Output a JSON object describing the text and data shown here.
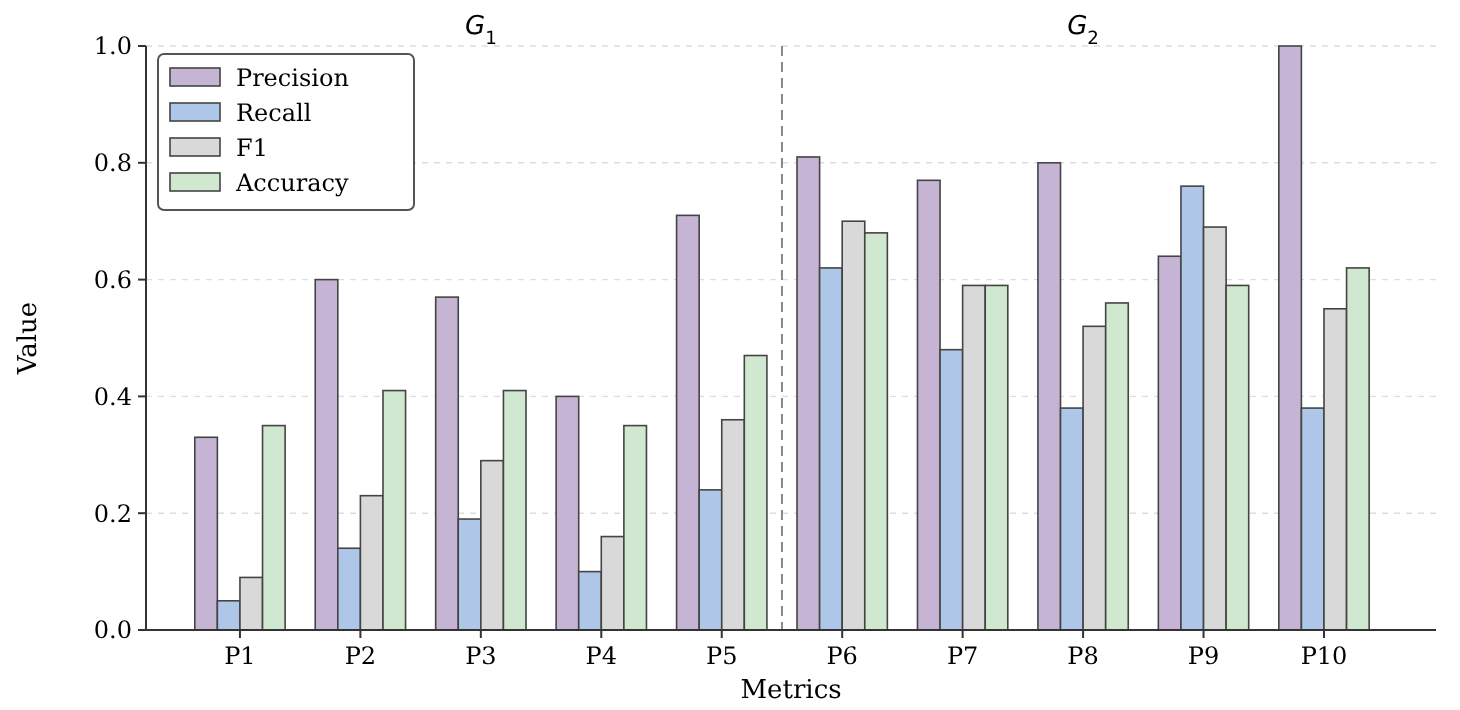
{
  "chart_data": {
    "type": "bar",
    "xlabel": "Metrics",
    "ylabel": "Value",
    "categories": [
      "P1",
      "P2",
      "P3",
      "P4",
      "P5",
      "P6",
      "P7",
      "P8",
      "P9",
      "P10"
    ],
    "series": [
      {
        "name": "Precision",
        "color": "#c6b4d4",
        "values": [
          0.33,
          0.6,
          0.57,
          0.4,
          0.71,
          0.81,
          0.77,
          0.8,
          0.64,
          1.0
        ]
      },
      {
        "name": "Recall",
        "color": "#aec6e8",
        "values": [
          0.05,
          0.14,
          0.19,
          0.1,
          0.24,
          0.62,
          0.48,
          0.38,
          0.76,
          0.38
        ]
      },
      {
        "name": "F1",
        "color": "#d9d9d9",
        "values": [
          0.09,
          0.23,
          0.29,
          0.16,
          0.36,
          0.7,
          0.59,
          0.52,
          0.69,
          0.55
        ]
      },
      {
        "name": "Accuracy",
        "color": "#cfe8cf",
        "values": [
          0.35,
          0.41,
          0.41,
          0.35,
          0.47,
          0.68,
          0.59,
          0.56,
          0.59,
          0.62
        ]
      }
    ],
    "ylim": [
      0,
      1
    ],
    "yticks": [
      {
        "value": 0,
        "label": "0.0"
      },
      {
        "value": 0.2,
        "label": "0.2"
      },
      {
        "value": 0.4,
        "label": "0.4"
      },
      {
        "value": 0.6,
        "label": "0.6"
      },
      {
        "value": 0.8,
        "label": "0.8"
      },
      {
        "value": 1,
        "label": "1.0"
      }
    ],
    "grid": "y",
    "legend": "top left",
    "annotations": [
      "G$_{1}$",
      "G$_{2}$"
    ]
  }
}
